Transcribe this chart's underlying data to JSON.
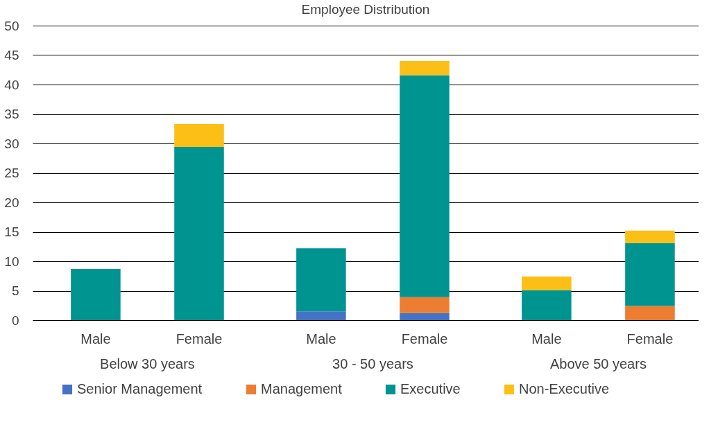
{
  "chart_data": {
    "type": "bar",
    "title": "Employee Distribution",
    "stacked": true,
    "categories": [
      "Male",
      "Female",
      "Male",
      "Female",
      "Male",
      "Female"
    ],
    "annotations": [
      "Below 30 years",
      "30 - 50 years",
      "Above 50 years"
    ],
    "series": [
      {
        "name": "Senior Management",
        "color": "#4472c4",
        "values": [
          0,
          0,
          1.5,
          1.2,
          0,
          0
        ]
      },
      {
        "name": "Management",
        "color": "#ed7d31",
        "values": [
          0,
          0,
          0,
          2.7,
          0,
          2.4
        ]
      },
      {
        "name": "Executive",
        "color": "#009490",
        "values": [
          8.7,
          29.4,
          10.7,
          37.7,
          5.1,
          10.7
        ]
      },
      {
        "name": "Non-Executive",
        "color": "#fbbf16",
        "values": [
          0,
          3.9,
          0,
          2.4,
          2.3,
          2.1
        ]
      }
    ],
    "ylim": [
      0,
      50
    ],
    "yticks": [
      0,
      5,
      10,
      15,
      20,
      25,
      30,
      35,
      40,
      45,
      50
    ],
    "grid": "y",
    "legend": "bottom"
  }
}
